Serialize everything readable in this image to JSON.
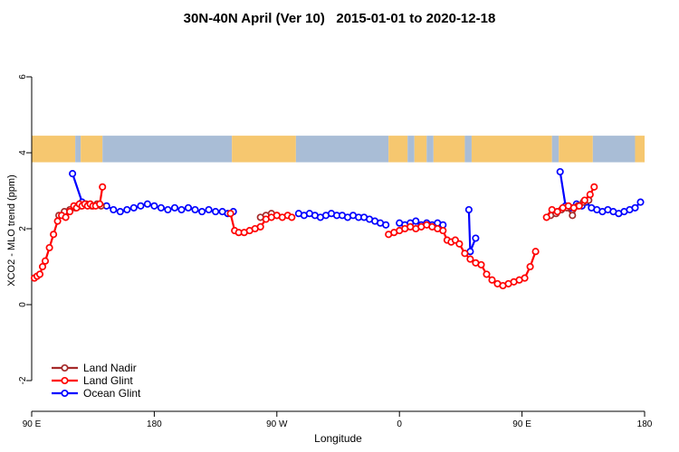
{
  "chart_data": {
    "type": "line",
    "title": "30N-40N April (Ver 10)   2015-01-01 to 2020-12-18",
    "xlabel": "Longitude",
    "ylabel": "XCO2 - MLO trend (ppm)",
    "x_axis": {
      "note": "axis measured in degrees travelling eastward from 90E (wraps 90E-180-90W-0-90E-180)",
      "range": [
        0,
        450
      ],
      "ticks": [
        {
          "pos": 0,
          "label": "90 E"
        },
        {
          "pos": 90,
          "label": "180"
        },
        {
          "pos": 180,
          "label": "90 W"
        },
        {
          "pos": 270,
          "label": "0"
        },
        {
          "pos": 360,
          "label": "90 E"
        },
        {
          "pos": 450,
          "label": "180"
        }
      ]
    },
    "y_axis": {
      "range": [
        -2.8,
        6.7
      ],
      "ticks": [
        {
          "value": -2,
          "label": "-2"
        },
        {
          "value": 0,
          "label": "0"
        },
        {
          "value": 2,
          "label": "2"
        },
        {
          "value": 4,
          "label": "4"
        },
        {
          "value": 6,
          "label": "6"
        }
      ]
    },
    "map_strip": {
      "y_range": [
        3.75,
        4.45
      ],
      "land_color": "#f6c76f",
      "ocean_color": "#a9bdd6",
      "segments": [
        {
          "x0": 0,
          "x1": 32,
          "type": "land"
        },
        {
          "x0": 32,
          "x1": 36,
          "type": "ocean"
        },
        {
          "x0": 36,
          "x1": 52,
          "type": "land"
        },
        {
          "x0": 52,
          "x1": 147,
          "type": "ocean"
        },
        {
          "x0": 147,
          "x1": 194,
          "type": "land"
        },
        {
          "x0": 194,
          "x1": 262,
          "type": "ocean"
        },
        {
          "x0": 262,
          "x1": 276,
          "type": "land"
        },
        {
          "x0": 276,
          "x1": 281,
          "type": "ocean"
        },
        {
          "x0": 281,
          "x1": 290,
          "type": "land"
        },
        {
          "x0": 290,
          "x1": 295,
          "type": "ocean"
        },
        {
          "x0": 295,
          "x1": 318,
          "type": "land"
        },
        {
          "x0": 318,
          "x1": 323,
          "type": "ocean"
        },
        {
          "x0": 323,
          "x1": 382,
          "type": "land"
        },
        {
          "x0": 382,
          "x1": 387,
          "type": "ocean"
        },
        {
          "x0": 387,
          "x1": 412,
          "type": "land"
        },
        {
          "x0": 412,
          "x1": 443,
          "type": "ocean"
        },
        {
          "x0": 443,
          "x1": 450,
          "type": "land"
        }
      ]
    },
    "series": [
      {
        "name": "Ocean Glint",
        "color": "#0000ff",
        "segments": [
          [
            [
              30,
              3.45
            ],
            [
              37,
              2.7
            ],
            [
              55,
              2.6
            ],
            [
              60,
              2.5
            ],
            [
              65,
              2.45
            ],
            [
              70,
              2.5
            ],
            [
              75,
              2.55
            ],
            [
              80,
              2.6
            ],
            [
              85,
              2.65
            ],
            [
              90,
              2.6
            ],
            [
              95,
              2.55
            ],
            [
              100,
              2.5
            ],
            [
              105,
              2.55
            ],
            [
              110,
              2.5
            ],
            [
              115,
              2.55
            ],
            [
              120,
              2.5
            ],
            [
              125,
              2.45
            ],
            [
              130,
              2.5
            ],
            [
              135,
              2.45
            ],
            [
              140,
              2.45
            ],
            [
              144,
              2.4
            ],
            [
              148,
              2.45
            ]
          ],
          [
            [
              196,
              2.4
            ],
            [
              200,
              2.35
            ],
            [
              204,
              2.4
            ],
            [
              208,
              2.35
            ],
            [
              212,
              2.3
            ],
            [
              216,
              2.35
            ],
            [
              220,
              2.4
            ],
            [
              224,
              2.35
            ],
            [
              228,
              2.35
            ],
            [
              232,
              2.3
            ],
            [
              236,
              2.35
            ],
            [
              240,
              2.3
            ],
            [
              244,
              2.3
            ],
            [
              248,
              2.25
            ],
            [
              252,
              2.2
            ],
            [
              256,
              2.15
            ],
            [
              260,
              2.1
            ]
          ],
          [
            [
              270,
              2.15
            ],
            [
              274,
              2.1
            ],
            [
              278,
              2.15
            ],
            [
              282,
              2.2
            ],
            [
              286,
              2.1
            ],
            [
              290,
              2.15
            ],
            [
              294,
              2.1
            ],
            [
              298,
              2.15
            ],
            [
              302,
              2.1
            ]
          ],
          [
            [
              321,
              2.5
            ],
            [
              322,
              1.4
            ],
            [
              326,
              1.75
            ]
          ],
          [
            [
              388,
              3.5
            ],
            [
              392,
              2.6
            ],
            [
              396,
              2.55
            ],
            [
              400,
              2.65
            ],
            [
              404,
              2.6
            ],
            [
              407,
              2.7
            ],
            [
              411,
              2.55
            ],
            [
              415,
              2.5
            ],
            [
              419,
              2.45
            ],
            [
              423,
              2.5
            ],
            [
              427,
              2.45
            ],
            [
              431,
              2.4
            ],
            [
              435,
              2.45
            ],
            [
              439,
              2.5
            ],
            [
              443,
              2.55
            ],
            [
              447,
              2.7
            ]
          ]
        ]
      },
      {
        "name": "Land Nadir",
        "color": "#a52a2a",
        "segments": [
          [
            [
              20,
              2.35
            ],
            [
              24,
              2.45
            ],
            [
              28,
              2.5
            ],
            [
              32,
              2.55
            ],
            [
              36,
              2.6
            ],
            [
              40,
              2.65
            ],
            [
              44,
              2.6
            ],
            [
              48,
              2.65
            ],
            [
              51,
              2.6
            ]
          ],
          [
            [
              168,
              2.3
            ],
            [
              172,
              2.35
            ],
            [
              176,
              2.4
            ],
            [
              180,
              2.35
            ]
          ],
          [
            [
              381,
              2.35
            ],
            [
              385,
              2.4
            ],
            [
              389,
              2.5
            ],
            [
              393,
              2.55
            ],
            [
              397,
              2.35
            ],
            [
              401,
              2.6
            ],
            [
              405,
              2.7
            ],
            [
              409,
              2.75
            ]
          ]
        ]
      },
      {
        "name": "Land Glint",
        "color": "#ff0000",
        "segments": [
          [
            [
              2,
              0.7
            ],
            [
              4,
              0.75
            ],
            [
              6,
              0.8
            ],
            [
              8,
              1.0
            ],
            [
              10,
              1.15
            ],
            [
              13,
              1.5
            ],
            [
              16,
              1.85
            ],
            [
              19,
              2.2
            ],
            [
              22,
              2.35
            ],
            [
              25,
              2.3
            ],
            [
              28,
              2.45
            ],
            [
              31,
              2.6
            ],
            [
              33,
              2.55
            ],
            [
              35,
              2.65
            ],
            [
              37,
              2.6
            ],
            [
              39,
              2.65
            ],
            [
              41,
              2.6
            ],
            [
              43,
              2.65
            ],
            [
              45,
              2.6
            ],
            [
              47,
              2.6
            ],
            [
              50,
              2.65
            ],
            [
              52,
              3.1
            ]
          ],
          [
            [
              146,
              2.4
            ],
            [
              149,
              1.95
            ],
            [
              152,
              1.9
            ],
            [
              156,
              1.9
            ],
            [
              160,
              1.95
            ],
            [
              164,
              2.0
            ],
            [
              168,
              2.05
            ],
            [
              172,
              2.25
            ],
            [
              176,
              2.3
            ],
            [
              180,
              2.35
            ],
            [
              184,
              2.3
            ],
            [
              188,
              2.35
            ],
            [
              191,
              2.3
            ]
          ],
          [
            [
              262,
              1.85
            ],
            [
              266,
              1.9
            ],
            [
              270,
              1.95
            ],
            [
              274,
              2.0
            ],
            [
              278,
              2.05
            ],
            [
              282,
              2.0
            ],
            [
              286,
              2.05
            ],
            [
              290,
              2.1
            ],
            [
              294,
              2.05
            ],
            [
              298,
              2.0
            ],
            [
              302,
              1.95
            ],
            [
              305,
              1.7
            ],
            [
              308,
              1.65
            ],
            [
              311,
              1.7
            ],
            [
              314,
              1.6
            ],
            [
              318,
              1.35
            ],
            [
              322,
              1.2
            ],
            [
              326,
              1.1
            ],
            [
              330,
              1.05
            ],
            [
              334,
              0.8
            ],
            [
              338,
              0.65
            ],
            [
              342,
              0.55
            ],
            [
              346,
              0.5
            ],
            [
              350,
              0.55
            ],
            [
              354,
              0.6
            ],
            [
              358,
              0.65
            ],
            [
              362,
              0.7
            ],
            [
              366,
              1.0
            ],
            [
              370,
              1.4
            ]
          ],
          [
            [
              378,
              2.3
            ],
            [
              382,
              2.5
            ],
            [
              386,
              2.45
            ],
            [
              390,
              2.55
            ],
            [
              394,
              2.6
            ],
            [
              398,
              2.55
            ],
            [
              402,
              2.6
            ],
            [
              406,
              2.75
            ],
            [
              410,
              2.9
            ],
            [
              413,
              3.1
            ]
          ]
        ]
      }
    ],
    "legend": {
      "position": "bottom-left",
      "entries": [
        "Land Nadir",
        "Land Glint",
        "Ocean Glint"
      ]
    }
  }
}
